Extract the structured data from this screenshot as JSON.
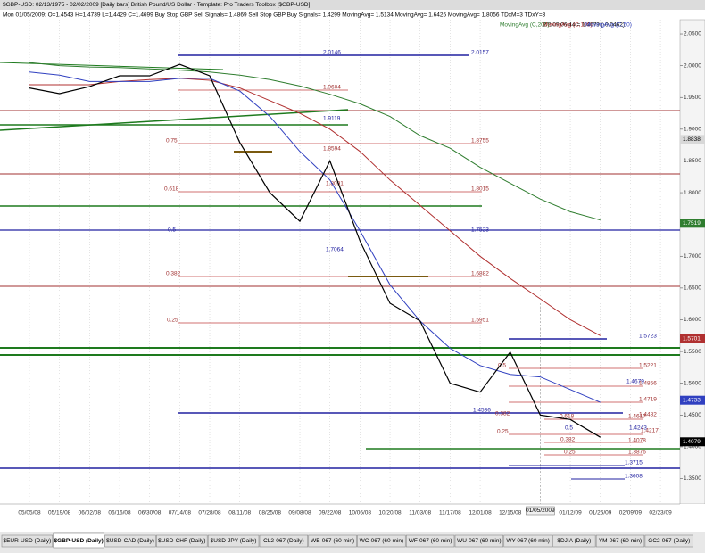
{
  "chart_data": {
    "type": "line",
    "title": "$GBP-USD:  02/13/1975 - 02/02/2009  [Daily bars]    British Pound/US Dollar  -  Template: Pro Traders Toolbox [$GBP-USD]",
    "subtitle": "Mon 01/05/2009:  O=1.4543  H=1.4739  L=1.4429  C=1.4699  Buy Stop GBP Sell Signals= 1.4869  Sell Stop GBP Buy Signals= 1.4299  MovingAvg= 1.5134  MovingAvg= 1.6425  MovingAvg= 1.8056  TDxM=3  TDxY=3",
    "quote": "2/2/09 06:44 = 1.4079 (-0.0462)",
    "categories": [
      "05/05/08",
      "05/19/08",
      "06/02/08",
      "06/16/08",
      "06/30/08",
      "07/14/08",
      "07/28/08",
      "08/11/08",
      "08/25/08",
      "09/08/08",
      "09/22/08",
      "10/06/08",
      "10/20/08",
      "11/03/08",
      "11/17/08",
      "12/01/08",
      "12/15/08",
      null,
      "01/12/09",
      "01/26/09",
      "02/09/09",
      "02/23/09"
    ],
    "values": [
      1.965,
      1.956,
      1.967,
      1.984,
      1.984,
      2.002,
      1.984,
      1.879,
      1.8,
      1.755,
      1.85,
      1.724,
      1.626,
      1.598,
      1.5,
      1.486,
      1.549,
      1.45,
      1.443,
      1.415,
      null,
      null
    ],
    "color": "#000000",
    "last_value": 1.4079,
    "series": [
      {
        "name": "MovingAvg (C,200)",
        "color": "#2f7d2f",
        "last_value": 1.7519,
        "values": [
          2.005,
          2.0,
          1.998,
          1.997,
          1.995,
          1.993,
          1.99,
          1.985,
          1.978,
          1.968,
          1.955,
          1.94,
          1.92,
          1.89,
          1.87,
          1.84,
          1.815,
          1.79,
          1.77,
          1.757,
          null,
          null
        ]
      },
      {
        "name": "MovingAvg (C,100)",
        "color": "#b03030",
        "last_value": 1.5701,
        "values": [
          1.97,
          1.97,
          1.97,
          1.975,
          1.978,
          1.98,
          1.977,
          1.965,
          1.945,
          1.925,
          1.9,
          1.865,
          1.82,
          1.78,
          1.74,
          1.7,
          1.665,
          1.633,
          1.6,
          1.575,
          null,
          null
        ]
      },
      {
        "name": "MovingAvg (C,50)",
        "color": "#3040c0",
        "last_value": 1.4733,
        "values": [
          1.99,
          1.985,
          1.975,
          1.975,
          1.975,
          1.98,
          1.98,
          1.96,
          1.92,
          1.865,
          1.82,
          1.74,
          1.655,
          1.598,
          1.555,
          1.528,
          1.514,
          1.51,
          1.49,
          1.47,
          null,
          null
        ]
      }
    ],
    "cursor_date": "01/05/2009",
    "cursor_value": 1.8838,
    "ylim": [
      1.31,
      2.0725
    ],
    "yticks": [
      {
        "value": 1.35,
        "label": "1.3500"
      },
      {
        "value": 1.4,
        "label": "1.4000"
      },
      {
        "value": 1.45,
        "label": "1.4500"
      },
      {
        "value": 1.5,
        "label": "1.5000"
      },
      {
        "value": 1.55,
        "label": "1.5500"
      },
      {
        "value": 1.6,
        "label": "1.6000"
      },
      {
        "value": 1.65,
        "label": "1.6500"
      },
      {
        "value": 1.7,
        "label": "1.7000"
      },
      {
        "value": 1.75,
        "label": "1.7500"
      },
      {
        "value": 1.8,
        "label": "1.8000"
      },
      {
        "value": 1.85,
        "label": "1.8500"
      },
      {
        "value": 1.9,
        "label": "1.9000"
      },
      {
        "value": 1.95,
        "label": "1.9500"
      },
      {
        "value": 2.0,
        "label": "2.0000"
      },
      {
        "value": 2.05,
        "label": "2.0500"
      }
    ],
    "annotations": [
      "2.0146",
      "2.0157",
      "1.9604",
      "1.9119",
      "0.75",
      "1.8755",
      "1.8594",
      "0.618",
      "1.8091",
      "1.8015",
      "0.5",
      "1.7523",
      "1.7064",
      "0.382",
      "1.6882",
      "0.25",
      "1.5951",
      "1.5723",
      "1.5221",
      "1.4856",
      "1.4679",
      "0.5",
      "1.4536",
      "0.382",
      "0.25",
      "1.4719",
      "1.4617",
      "1.4482",
      "0.618",
      "0.5",
      "1.4243",
      "1.4217",
      "0.382",
      "1.4078",
      "0.25",
      "1.3876",
      "1.3715",
      "1.3608"
    ]
  },
  "tabs": [
    "$EUR-USD (Daily)",
    "$GBP-USD (Daily)",
    "$USD-CAD (Daily)",
    "$USD-CHF (Daily)",
    "$USD-JPY (Daily)",
    "CL2-067 (Daily)",
    "WB-067 (60 min)",
    "WC-067 (60 min)",
    "WF-067 (60 min)",
    "WU-067 (60 min)",
    "WY-067 (60 min)",
    "$DJIA (Daily)",
    "YM-067 (60 min)",
    "GC2-067 (Daily)"
  ]
}
